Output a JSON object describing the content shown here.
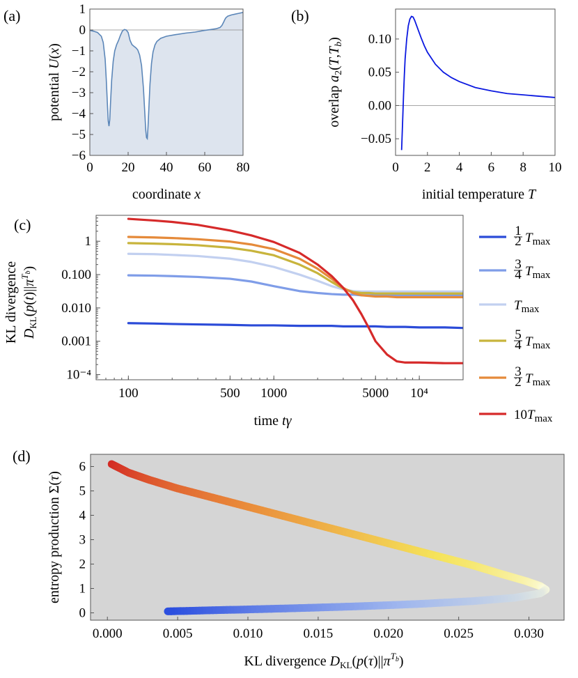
{
  "chart_data": [
    {
      "panel": "(a)",
      "type": "area",
      "xlabel": "coordinate",
      "xlabel_var": "x",
      "ylabel": "potential",
      "ylabel_var": "U(x)",
      "xlim": [
        0,
        80
      ],
      "ylim": [
        -6,
        1
      ],
      "xticks": [
        "0",
        "20",
        "40",
        "60",
        "80"
      ],
      "yticks": [
        "1",
        "0",
        "−1",
        "−2",
        "−3",
        "−4",
        "−5",
        "−6"
      ],
      "x": [
        0,
        2,
        4,
        6,
        7,
        8,
        8.6,
        9.2,
        9.6,
        10,
        10.4,
        10.8,
        11.4,
        12.2,
        13,
        14,
        15,
        16,
        17,
        18,
        19,
        20,
        21,
        22,
        23,
        24,
        25,
        26,
        27,
        28,
        28.6,
        29.2,
        29.6,
        30,
        30.4,
        30.8,
        31.4,
        32.2,
        33,
        34,
        35,
        37,
        40,
        45,
        50,
        55,
        60,
        63,
        66,
        68,
        69,
        70,
        70.5,
        71,
        72,
        74,
        76,
        78,
        80
      ],
      "values": [
        -0.02,
        -0.06,
        -0.12,
        -0.3,
        -0.6,
        -1.4,
        -2.4,
        -3.6,
        -4.35,
        -4.6,
        -4.3,
        -3.5,
        -2.4,
        -1.5,
        -1.0,
        -0.7,
        -0.5,
        -0.25,
        -0.05,
        0.02,
        0.0,
        -0.12,
        -0.5,
        -0.7,
        -0.78,
        -0.85,
        -0.95,
        -1.2,
        -1.7,
        -2.8,
        -3.8,
        -4.8,
        -5.15,
        -5.2,
        -4.6,
        -3.8,
        -2.6,
        -1.6,
        -1.05,
        -0.72,
        -0.55,
        -0.4,
        -0.3,
        -0.22,
        -0.15,
        -0.1,
        -0.02,
        0.02,
        0.06,
        0.12,
        0.22,
        0.4,
        0.5,
        0.58,
        0.66,
        0.72,
        0.76,
        0.8,
        0.84
      ],
      "color": "#5b86b8",
      "fill": "#dde4ee"
    },
    {
      "panel": "(b)",
      "type": "line",
      "xlabel": "initial temperature",
      "xlabel_var": "T",
      "ylabel": "overlap",
      "ylabel_var": "a₂(T,T_b)",
      "xlim": [
        0,
        10
      ],
      "ylim": [
        -0.075,
        0.145
      ],
      "xticks": [
        "0",
        "2",
        "4",
        "6",
        "8",
        "10"
      ],
      "yticks": [
        "0.10",
        "0.05",
        "0.00",
        "−0.05"
      ],
      "x": [
        0.38,
        0.45,
        0.5,
        0.55,
        0.6,
        0.7,
        0.8,
        0.9,
        1.0,
        1.1,
        1.2,
        1.4,
        1.6,
        1.8,
        2.0,
        2.5,
        3,
        3.5,
        4,
        5,
        6,
        7,
        8,
        9,
        10
      ],
      "values": [
        -0.067,
        -0.02,
        0.015,
        0.045,
        0.07,
        0.1,
        0.12,
        0.13,
        0.134,
        0.133,
        0.128,
        0.115,
        0.102,
        0.09,
        0.08,
        0.062,
        0.05,
        0.042,
        0.036,
        0.027,
        0.022,
        0.018,
        0.016,
        0.014,
        0.012
      ],
      "color": "#0a18e0"
    },
    {
      "panel": "(c)",
      "type": "line",
      "xscale": "log",
      "yscale": "log",
      "xlabel": "time",
      "xlabel_var": "tγ",
      "ylabel_top": "KL divergence",
      "ylabel_bottom": "D_KL(p(t)||π^{T_b})",
      "xlim": [
        60,
        20000
      ],
      "ylim": [
        7e-05,
        6
      ],
      "xticks": [
        "100",
        "500",
        "1000",
        "5000",
        "10⁴"
      ],
      "yticks": [
        "1",
        "0.100",
        "0.010",
        "0.001",
        "10⁻⁴"
      ],
      "x": [
        100,
        150,
        200,
        300,
        500,
        700,
        1000,
        1500,
        2000,
        2500,
        3000,
        3500,
        4000,
        4500,
        5000,
        6000,
        7000,
        8000,
        10000,
        15000,
        20000
      ],
      "legend_position": "right",
      "series": [
        {
          "name": "½ T_max",
          "legend": {
            "num": "1",
            "den": "2",
            "var": "T",
            "sub": "max"
          },
          "color": "#2b4bd8",
          "values": [
            0.0035,
            0.0034,
            0.0033,
            0.0032,
            0.0031,
            0.003,
            0.003,
            0.0029,
            0.0029,
            0.0029,
            0.0028,
            0.0028,
            0.0028,
            0.0028,
            0.0028,
            0.0027,
            0.0027,
            0.0027,
            0.0026,
            0.0026,
            0.0025
          ]
        },
        {
          "name": "¾ T_max",
          "legend": {
            "num": "3",
            "den": "4",
            "var": "T",
            "sub": "max"
          },
          "color": "#7f9de8",
          "values": [
            0.095,
            0.093,
            0.09,
            0.085,
            0.075,
            0.062,
            0.045,
            0.032,
            0.028,
            0.026,
            0.025,
            0.025,
            0.024,
            0.024,
            0.024,
            0.024,
            0.024,
            0.024,
            0.024,
            0.024,
            0.024
          ]
        },
        {
          "name": "T_max",
          "legend": {
            "num": "",
            "den": "",
            "var": "T",
            "sub": "max"
          },
          "color": "#c2d0f0",
          "values": [
            0.42,
            0.41,
            0.39,
            0.36,
            0.3,
            0.24,
            0.17,
            0.1,
            0.065,
            0.045,
            0.036,
            0.032,
            0.031,
            0.031,
            0.031,
            0.031,
            0.031,
            0.031,
            0.031,
            0.031,
            0.031
          ]
        },
        {
          "name": "5/4 T_max",
          "legend": {
            "num": "5",
            "den": "4",
            "var": "T",
            "sub": "max"
          },
          "color": "#c8b43c",
          "values": [
            0.88,
            0.85,
            0.82,
            0.76,
            0.64,
            0.52,
            0.38,
            0.2,
            0.11,
            0.06,
            0.038,
            0.03,
            0.028,
            0.028,
            0.027,
            0.027,
            0.027,
            0.027,
            0.027,
            0.027,
            0.027
          ]
        },
        {
          "name": "3/2 T_max",
          "legend": {
            "num": "3",
            "den": "2",
            "var": "T",
            "sub": "max"
          },
          "color": "#e58a3a",
          "values": [
            1.35,
            1.3,
            1.25,
            1.15,
            0.98,
            0.8,
            0.58,
            0.3,
            0.15,
            0.075,
            0.04,
            0.028,
            0.024,
            0.023,
            0.022,
            0.022,
            0.021,
            0.021,
            0.021,
            0.021,
            0.021
          ]
        },
        {
          "name": "10 T_max",
          "legend": {
            "num": "",
            "den": "",
            "var": "10T",
            "sub": "max"
          },
          "color": "#d62a2a",
          "values": [
            4.7,
            4.2,
            3.8,
            3.1,
            2.1,
            1.5,
            0.95,
            0.45,
            0.2,
            0.09,
            0.04,
            0.017,
            0.0065,
            0.0025,
            0.001,
            0.0004,
            0.00025,
            0.00023,
            0.00023,
            0.00022,
            0.00022
          ]
        }
      ]
    },
    {
      "panel": "(d)",
      "type": "line",
      "xlabel": "KL divergence",
      "xlabel_var": "D_KL(p(τ)||π^{T_b})",
      "ylabel": "entropy production",
      "ylabel_var": "Σ(τ)",
      "xlim": [
        -0.0012,
        0.0325
      ],
      "ylim": [
        -0.3,
        6.5
      ],
      "xticks": [
        "0.000",
        "0.005",
        "0.010",
        "0.015",
        "0.020",
        "0.025",
        "0.030"
      ],
      "yticks": [
        "6",
        "5",
        "4",
        "3",
        "2",
        "1",
        "0"
      ],
      "x": [
        0.0003,
        0.0015,
        0.003,
        0.005,
        0.008,
        0.011,
        0.014,
        0.017,
        0.02,
        0.023,
        0.026,
        0.028,
        0.0298,
        0.0308,
        0.0312,
        0.0308,
        0.029,
        0.026,
        0.022,
        0.018,
        0.014,
        0.01,
        0.007,
        0.0043
      ],
      "values": [
        6.1,
        5.75,
        5.45,
        5.1,
        4.65,
        4.2,
        3.75,
        3.3,
        2.85,
        2.4,
        1.95,
        1.6,
        1.3,
        1.1,
        0.95,
        0.8,
        0.62,
        0.48,
        0.36,
        0.27,
        0.2,
        0.14,
        0.1,
        0.06
      ],
      "color_stops": [
        "#d32b24",
        "#e98a3a",
        "#f5e35a",
        "#fbfbdc",
        "#9fb6ee",
        "#2c4fdf"
      ],
      "background": "#d5d5d5"
    }
  ]
}
